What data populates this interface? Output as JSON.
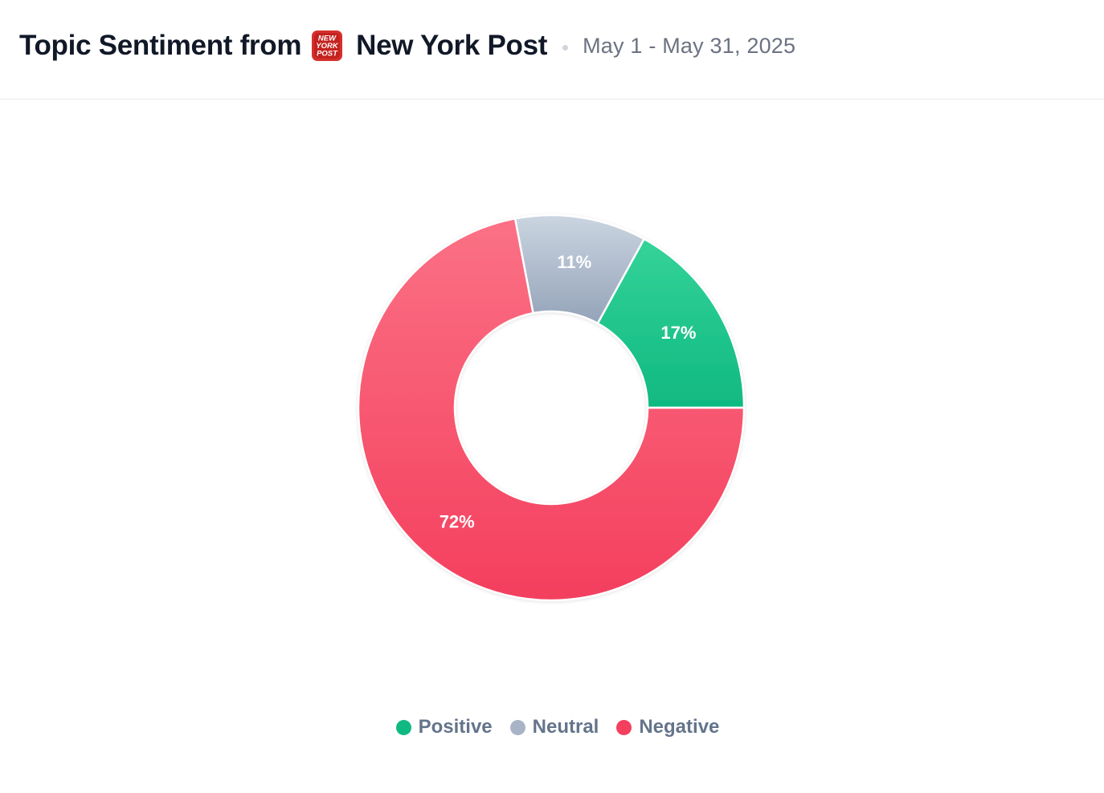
{
  "header": {
    "title_prefix": "Topic Sentiment from",
    "source_logo_icon": "new-york-post-logo",
    "source_logo_text": [
      "NEW",
      "YORK",
      "POST"
    ],
    "source_name": "New York Post",
    "date_range": "May 1 - May 31, 2025"
  },
  "chart_data": {
    "type": "pie",
    "variant": "donut",
    "title": "",
    "categories": [
      "Positive",
      "Neutral",
      "Negative"
    ],
    "values": [
      17,
      11,
      72
    ],
    "value_labels": [
      "17%",
      "11%",
      "72%"
    ],
    "unit": "%",
    "colors": {
      "Positive": [
        "#34d399",
        "#10b981"
      ],
      "Neutral": [
        "#cbd5e1",
        "#94a3b8"
      ],
      "Negative": [
        "#fb7185",
        "#f43f5e"
      ]
    },
    "legend": {
      "position": "bottom-center",
      "items": [
        {
          "label": "Positive",
          "color": "#10b981"
        },
        {
          "label": "Neutral",
          "color": "#a8b4c6"
        },
        {
          "label": "Negative",
          "color": "#f43f5e"
        }
      ]
    }
  }
}
